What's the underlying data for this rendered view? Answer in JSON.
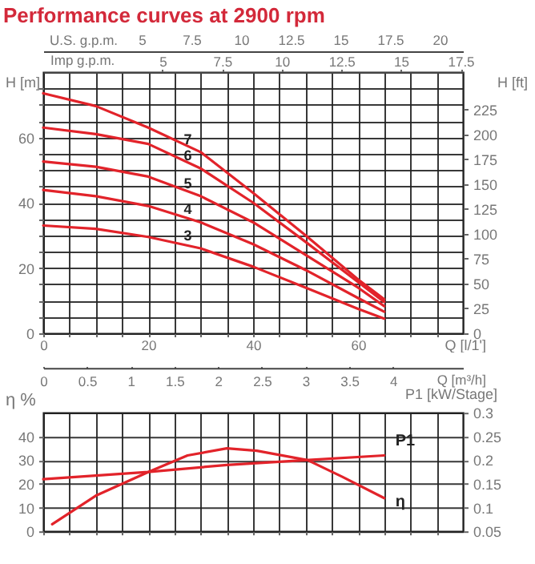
{
  "chart_data": [
    {
      "type": "line",
      "title": "Performance curves at 2900 rpm",
      "xlabel": "Q [l/1']",
      "ylabel": "H [m]",
      "y2label": "H [ft]",
      "x2label": "Imp g.p.m.",
      "annotations": [
        "U.S. g.p.m.",
        "5",
        "7.5",
        "10",
        "12.5",
        "15",
        "17.5",
        "20"
      ],
      "x": [
        0,
        10,
        20,
        30,
        40,
        50,
        60,
        65
      ],
      "xlim": [
        0,
        80
      ],
      "xticks": [
        0,
        {
          "value": 5,
          "label": null
        },
        {
          "value": 10,
          "label": null
        },
        {
          "value": 15,
          "label": null
        },
        20,
        {
          "value": 25,
          "label": null
        },
        {
          "value": 30,
          "label": null
        },
        {
          "value": 35,
          "label": null
        },
        40,
        {
          "value": 45,
          "label": null
        },
        {
          "value": 50,
          "label": null
        },
        {
          "value": 55,
          "label": null
        },
        60,
        {
          "value": 65,
          "label": null
        },
        {
          "value": 70,
          "label": null
        },
        {
          "value": 75,
          "label": null
        }
      ],
      "ylim": [
        0,
        80
      ],
      "yticks": [
        0,
        {
          "value": 5,
          "label": null
        },
        {
          "value": 10,
          "label": null
        },
        {
          "value": 15,
          "label": null
        },
        20,
        {
          "value": 25,
          "label": null
        },
        {
          "value": 30,
          "label": null
        },
        {
          "value": 35,
          "label": null
        },
        40,
        {
          "value": 45,
          "label": null
        },
        {
          "value": 50,
          "label": null
        },
        {
          "value": 55,
          "label": null
        },
        60,
        {
          "value": 65,
          "label": null
        },
        {
          "value": 70,
          "label": null
        },
        {
          "value": 75,
          "label": null
        }
      ],
      "y2lim": [
        0,
        262.5
      ],
      "y2ticks": [
        0,
        25,
        50,
        75,
        100,
        125,
        150,
        175,
        200,
        225
      ],
      "x2lim": [
        0,
        17.6
      ],
      "x2ticks": [
        5,
        7.5,
        10,
        12.5,
        15,
        17.5
      ],
      "grid": true,
      "marker": "none",
      "line_style": "solid",
      "series": [
        {
          "name": "7",
          "color": "#e2232a",
          "values": [
            73.5,
            69.6,
            63,
            55.5,
            43,
            30,
            16.5,
            10.4
          ]
        },
        {
          "name": "6",
          "color": "#e2232a",
          "values": [
            63,
            61,
            58,
            50.5,
            40,
            28,
            15.7,
            9.6
          ]
        },
        {
          "name": "5",
          "color": "#e2232a",
          "values": [
            52.6,
            51,
            48,
            42,
            34,
            24,
            14,
            8.3
          ]
        },
        {
          "name": "4",
          "color": "#e2232a",
          "values": [
            43.9,
            42,
            39,
            34,
            27.3,
            19.4,
            10.8,
            6.6
          ]
        },
        {
          "name": "3",
          "color": "#e2232a",
          "values": [
            33,
            32,
            29.5,
            26,
            20.4,
            14,
            7.5,
            4.5
          ]
        }
      ]
    },
    {
      "type": "line",
      "ylabel": "η %",
      "y2label": "P1 [kW/Stage]",
      "x2label": "Q [m³/h]",
      "xlim": [
        0,
        80
      ],
      "xticks": [
        {
          "value": 0,
          "label": null
        },
        {
          "value": 5,
          "label": null
        },
        {
          "value": 10,
          "label": null
        },
        {
          "value": 15,
          "label": null
        },
        {
          "value": 20,
          "label": null
        },
        {
          "value": 25,
          "label": null
        },
        {
          "value": 30,
          "label": null
        },
        {
          "value": 35,
          "label": null
        },
        {
          "value": 40,
          "label": null
        },
        {
          "value": 45,
          "label": null
        },
        {
          "value": 50,
          "label": null
        },
        {
          "value": 55,
          "label": null
        },
        {
          "value": 60,
          "label": null
        },
        {
          "value": 65,
          "label": null
        },
        {
          "value": 70,
          "label": null
        },
        {
          "value": 75,
          "label": null
        }
      ],
      "x2lim": [
        0,
        4.8
      ],
      "x2ticks": [
        0,
        0.5,
        1,
        1.5,
        2,
        2.5,
        3,
        3.5,
        4
      ],
      "ylim": [
        0,
        50
      ],
      "yticks": [
        0,
        10,
        20,
        30,
        40
      ],
      "y2lim": [
        0.05,
        0.3
      ],
      "y2ticks": [
        0.05,
        0.1,
        0.15,
        0.2,
        0.25,
        0.3
      ],
      "tick_labels": "y",
      "grid": true,
      "marker": "none",
      "line_style": "solid",
      "series": [
        {
          "name": "η",
          "color": "#e2232a",
          "x": [
            1.7,
            10,
            20,
            27.5,
            35,
            40.7,
            50.4,
            57,
            65
          ],
          "values": [
            3,
            15,
            25,
            32,
            35,
            34,
            30,
            23,
            14
          ]
        },
        {
          "name": "P1",
          "color": "#e2232a",
          "axis": "y2",
          "x": [
            0,
            20,
            35,
            50,
            65
          ],
          "values": [
            0.16,
            0.175,
            0.19,
            0.2,
            0.21
          ]
        }
      ]
    }
  ]
}
